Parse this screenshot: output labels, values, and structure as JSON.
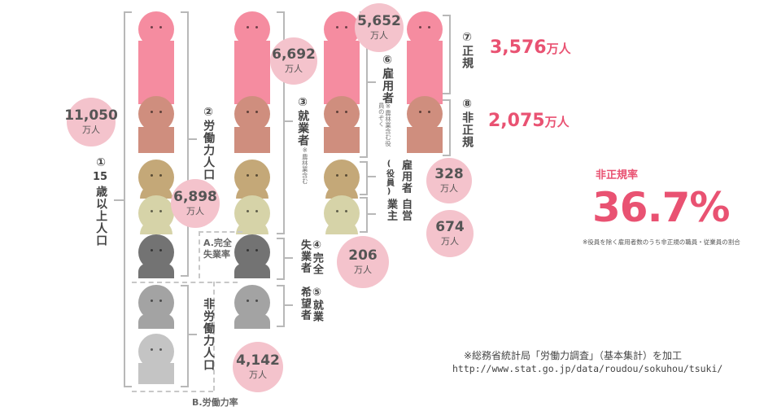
{
  "labels": {
    "c1_num": "①",
    "c1_15": "15",
    "c1_text": "歳以上人口",
    "c2": "②労働力人口",
    "c3": "③就業者",
    "c3_note": "※農林業含む",
    "c4": "④完全失業者",
    "c5": "⑤就業希望者",
    "c6": "⑥雇用者",
    "c6_note": "※農林業含む役員のぞく",
    "c7": "⑦正規",
    "c8": "⑧非正規",
    "officer_a": "雇用者",
    "officer_b": "(役員)",
    "self_a": "自営",
    "self_b": "業主",
    "non_labor": "非労働力人口",
    "rate_a": "A.完全",
    "rate_a2": "失業率",
    "rate_b": "B.労働力率"
  },
  "bubbles": {
    "pop15": {
      "num": "11,050",
      "unit": "万人"
    },
    "labor": {
      "num": "6,898",
      "unit": "万人"
    },
    "employed": {
      "num": "6,692",
      "unit": "万人"
    },
    "employee": {
      "num": "5,652",
      "unit": "万人"
    },
    "officer": {
      "num": "328",
      "unit": "万人"
    },
    "self": {
      "num": "674",
      "unit": "万人"
    },
    "unemployed": {
      "num": "206",
      "unit": "万人"
    },
    "nonlabor": {
      "num": "4,142",
      "unit": "万人"
    }
  },
  "highlights": {
    "regular": {
      "num": "3,576",
      "unit": "万人"
    },
    "nonregular": {
      "num": "2,075",
      "unit": "万人"
    }
  },
  "rate": {
    "title": "非正規率",
    "value": "36.7%",
    "note": "※役員を除く雇用者数のうち非正規の職員・従業員の割合"
  },
  "source": {
    "line1": "※総務省統計局「労働力調査」（基本集計）を加工",
    "line2": "http://www.stat.go.jp/data/roudou/sokuhou/tsuki/"
  },
  "colors": {
    "regular": "#f58ca0",
    "nonregular": "#cf8e7e",
    "officer": "#c4a878",
    "self": "#d6d3a8",
    "unemployed": "#737373",
    "nonlabor_dark": "#a3a3a3",
    "nonlabor_light": "#c4c4c4",
    "accent": "#e95272",
    "bubble": "#f4c3cc"
  }
}
